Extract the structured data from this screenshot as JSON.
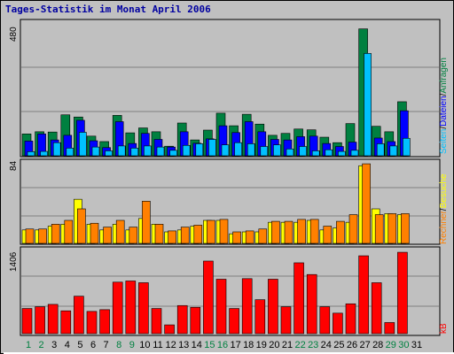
{
  "window": {
    "title": "Tages-Statistik im Monat April 2006"
  },
  "panels": {
    "traffic": {
      "max_label": "480"
    },
    "visits": {
      "max_label": "84"
    },
    "kb": {
      "max_label": "1406"
    }
  },
  "legend": {
    "anfragen": "Anfragen",
    "dateien": "Dateien",
    "seiten": "Seiten",
    "besuche": "Besuche",
    "rechner": "Rechner",
    "kb": "kB",
    "separator": "/"
  },
  "colors": {
    "anfragen": "#008040",
    "dateien": "#0000ff",
    "seiten": "#00c0ff",
    "besuche": "#ffff00",
    "rechner": "#ff8000",
    "kb": "#ff0000",
    "weekend_day": "#008040",
    "weekday": "#000000",
    "title": "#0000a0"
  },
  "chart_data": {
    "type": "bar",
    "title": "Tages-Statistik im Monat April 2006",
    "categories": [
      "1",
      "2",
      "3",
      "4",
      "5",
      "6",
      "7",
      "8",
      "9",
      "10",
      "11",
      "12",
      "13",
      "14",
      "15",
      "16",
      "17",
      "18",
      "19",
      "20",
      "21",
      "22",
      "23",
      "24",
      "25",
      "26",
      "27",
      "28",
      "29",
      "30",
      "31"
    ],
    "weekend": [
      1,
      2,
      8,
      9,
      15,
      16,
      22,
      23,
      29,
      30
    ],
    "panels": [
      {
        "name": "traffic",
        "ymax": 480,
        "series": [
          {
            "name": "Anfragen",
            "color": "#008040",
            "values": [
              80,
              88,
              87,
              150,
              142,
              72,
              52,
              148,
              84,
              102,
              88,
              35,
              120,
              58,
              94,
              156,
              110,
              152,
              116,
              75,
              82,
              98,
              95,
              68,
              48,
              118,
              465,
              108,
              88,
              198,
              0
            ]
          },
          {
            "name": "Dateien",
            "color": "#0000ff",
            "values": [
              54,
              80,
              58,
              75,
              130,
              55,
              30,
              125,
              45,
              82,
              60,
              32,
              88,
              46,
              62,
              110,
              85,
              125,
              88,
              60,
              58,
              70,
              72,
              45,
              34,
              50,
              0,
              65,
              52,
              165,
              0
            ]
          },
          {
            "name": "Seiten",
            "color": "#00c0ff",
            "values": [
              15,
              16,
              48,
              28,
              86,
              32,
              18,
              36,
              28,
              36,
              32,
              20,
              38,
              44,
              60,
              40,
              48,
              44,
              34,
              40,
              25,
              34,
              18,
              22,
              16,
              20,
              375,
              44,
              36,
              64,
              0
            ]
          }
        ]
      },
      {
        "name": "visits",
        "ymax": 84,
        "series": [
          {
            "name": "Besuche",
            "color": "#ffff00",
            "values": [
              14,
              14,
              18,
              20,
              46,
              20,
              14,
              20,
              14,
              26,
              20,
              12,
              14,
              18,
              24,
              24,
              10,
              12,
              12,
              22,
              22,
              22,
              24,
              14,
              16,
              22,
              81,
              36,
              31,
              30,
              0
            ]
          },
          {
            "name": "Rechner",
            "color": "#ff8000",
            "values": [
              15,
              15,
              20,
              24,
              36,
              21,
              17,
              24,
              17,
              44,
              20,
              13,
              17,
              19,
              24,
              25,
              12,
              13,
              15,
              23,
              23,
              25,
              25,
              18,
              23,
              30,
              83,
              30,
              31,
              31,
              0
            ]
          }
        ]
      },
      {
        "name": "kb",
        "ymax": 1406,
        "series": [
          {
            "name": "kB",
            "color": "#ff0000",
            "values": [
              430,
              460,
              500,
              390,
              640,
              380,
              410,
              880,
              900,
              870,
              430,
              150,
              480,
              450,
              1240,
              930,
              430,
              940,
              580,
              930,
              460,
              1210,
              1010,
              460,
              350,
              510,
              1330,
              870,
              190,
              1390,
              0
            ]
          }
        ]
      }
    ]
  }
}
